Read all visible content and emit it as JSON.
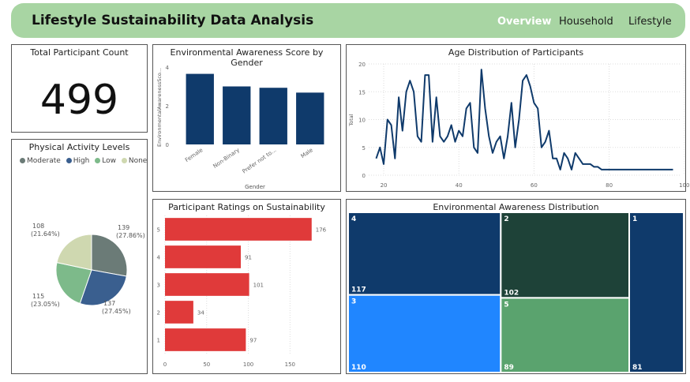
{
  "header": {
    "title": "Lifestyle Sustainability Data Analysis",
    "nav": [
      {
        "label": "Overview",
        "active": true
      },
      {
        "label": "Household",
        "active": false
      },
      {
        "label": "Lifestyle",
        "active": false
      }
    ],
    "bg_color": "#a8d5a3"
  },
  "participant_count": {
    "title": "Total Participant Count",
    "value": "499"
  },
  "chart_data": [
    {
      "type": "pie",
      "title": "Physical Activity Levels",
      "legend": [
        "Moderate",
        "High",
        "Low",
        "None"
      ],
      "slices": [
        {
          "label": "Moderate",
          "value": 139,
          "percent": "27.86%",
          "color": "#6b7b77"
        },
        {
          "label": "High",
          "value": 137,
          "percent": "27.45%",
          "color": "#3a5f8f"
        },
        {
          "label": "Low",
          "value": 115,
          "percent": "23.05%",
          "color": "#7dba8a"
        },
        {
          "label": "None",
          "value": 108,
          "percent": "21.64%",
          "color": "#cfd8b0"
        }
      ]
    },
    {
      "type": "bar",
      "title": "Environmental Awareness Score by Gender",
      "categories": [
        "Female",
        "Non-Binary",
        "Prefer not to...",
        "Male"
      ],
      "values": [
        3.65,
        3.0,
        2.93,
        2.68
      ],
      "xlabel": "Gender",
      "ylabel": "EnvironmentalAwarenessSco...",
      "yticks": [
        0,
        2,
        4
      ],
      "ylim": [
        0,
        4
      ],
      "color": "#0f3a6b"
    },
    {
      "type": "line",
      "title": "Age Distribution of Participants",
      "ylabel": "Total",
      "xticks": [
        20,
        40,
        60,
        80,
        100
      ],
      "yticks": [
        0,
        5,
        10,
        15,
        20
      ],
      "xlim": [
        16,
        99
      ],
      "ylim": [
        0,
        20
      ],
      "x": [
        18,
        19,
        20,
        21,
        22,
        23,
        24,
        25,
        26,
        27,
        28,
        29,
        30,
        31,
        32,
        33,
        34,
        35,
        36,
        37,
        38,
        39,
        40,
        41,
        42,
        43,
        44,
        45,
        46,
        47,
        48,
        49,
        50,
        51,
        52,
        53,
        54,
        55,
        56,
        57,
        58,
        59,
        60,
        61,
        62,
        63,
        64,
        65,
        66,
        67,
        68,
        69,
        70,
        71,
        72,
        73,
        74,
        75,
        76,
        77,
        78,
        79,
        80,
        85,
        90,
        95,
        97
      ],
      "y": [
        3,
        5,
        2,
        10,
        9,
        3,
        14,
        8,
        15,
        17,
        15,
        7,
        6,
        18,
        18,
        6,
        14,
        7,
        6,
        7,
        9,
        6,
        8,
        7,
        12,
        13,
        5,
        4,
        19,
        12,
        7,
        4,
        6,
        7,
        3,
        7,
        13,
        5,
        10,
        17,
        18,
        16,
        13,
        12,
        5,
        6,
        8,
        3,
        3,
        1,
        4,
        3,
        1,
        4,
        3,
        2,
        2,
        2,
        1.5,
        1.5,
        1,
        1,
        1,
        1,
        1,
        1,
        1
      ],
      "color": "#0f3a6b"
    },
    {
      "type": "bar",
      "orientation": "horizontal",
      "title": "Participant Ratings on Sustainability",
      "categories": [
        "5",
        "4",
        "3",
        "2",
        "1"
      ],
      "values": [
        176,
        91,
        101,
        34,
        97
      ],
      "xticks": [
        0,
        50,
        100,
        150
      ],
      "xlim": [
        0,
        180
      ],
      "color": "#e03a3a"
    },
    {
      "type": "treemap",
      "title": "Environmental Awareness Distribution",
      "items": [
        {
          "label": "4",
          "value": 117,
          "color": "#0f3a6b"
        },
        {
          "label": "2",
          "value": 102,
          "color": "#1e4238"
        },
        {
          "label": "1",
          "value": 81,
          "color": "#0f3a6b"
        },
        {
          "label": "3",
          "value": 110,
          "color": "#2086ff"
        },
        {
          "label": "5",
          "value": 89,
          "color": "#5aa36e"
        }
      ]
    }
  ]
}
